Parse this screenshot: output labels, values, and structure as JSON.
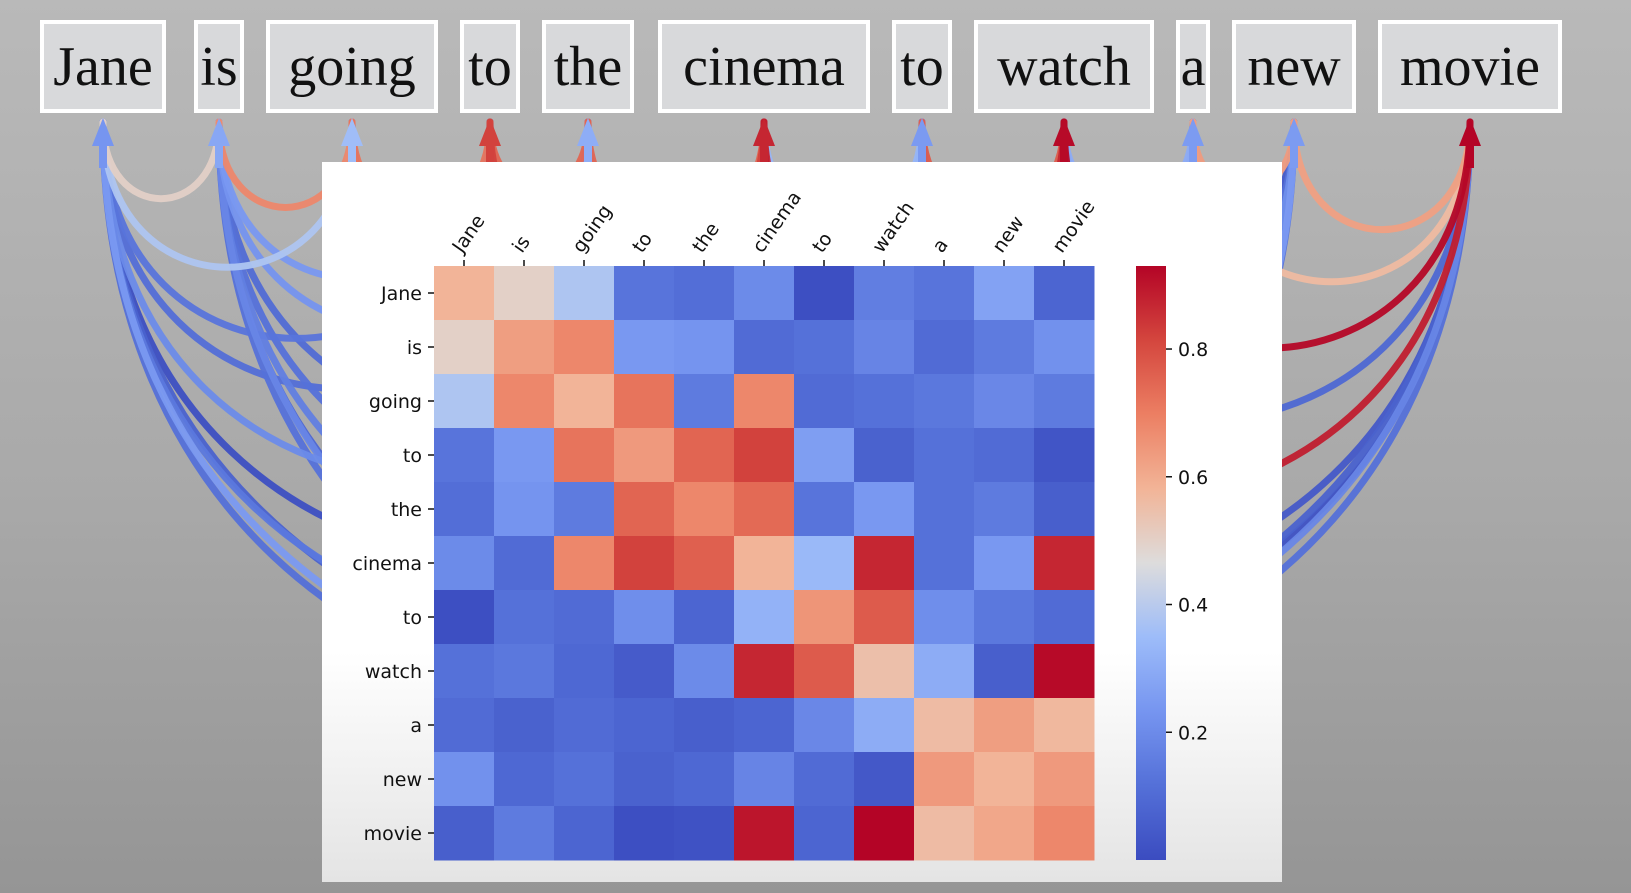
{
  "tokens": [
    "Jane",
    "is",
    "going",
    "to",
    "the",
    "cinema",
    "to",
    "watch",
    "a",
    "new",
    "movie"
  ],
  "colors": {
    "background": "#b0b0b0",
    "token_box": "#d8d9db",
    "token_border": "#ffffff",
    "colormap": "coolwarm",
    "low": "#3b4cc0",
    "mid": "#dddcdc",
    "high": "#b40426"
  },
  "chart_data": {
    "type": "heatmap",
    "x_labels": [
      "Jane",
      "is",
      "going",
      "to",
      "the",
      "cinema",
      "to",
      "watch",
      "a",
      "new",
      "movie"
    ],
    "y_labels": [
      "Jane",
      "is",
      "going",
      "to",
      "the",
      "cinema",
      "to",
      "watch",
      "a",
      "new",
      "movie"
    ],
    "values": [
      [
        0.58,
        0.5,
        0.38,
        0.13,
        0.11,
        0.2,
        0.01,
        0.16,
        0.13,
        0.27,
        0.08
      ],
      [
        0.5,
        0.63,
        0.68,
        0.24,
        0.23,
        0.1,
        0.12,
        0.18,
        0.1,
        0.15,
        0.22
      ],
      [
        0.38,
        0.68,
        0.58,
        0.72,
        0.15,
        0.68,
        0.1,
        0.12,
        0.14,
        0.19,
        0.15
      ],
      [
        0.13,
        0.24,
        0.72,
        0.64,
        0.75,
        0.82,
        0.26,
        0.07,
        0.12,
        0.1,
        0.03
      ],
      [
        0.11,
        0.23,
        0.15,
        0.75,
        0.68,
        0.74,
        0.13,
        0.24,
        0.12,
        0.15,
        0.06
      ],
      [
        0.2,
        0.1,
        0.68,
        0.82,
        0.76,
        0.58,
        0.34,
        0.87,
        0.12,
        0.24,
        0.87
      ],
      [
        0.01,
        0.12,
        0.1,
        0.21,
        0.08,
        0.32,
        0.65,
        0.77,
        0.21,
        0.14,
        0.1
      ],
      [
        0.12,
        0.14,
        0.09,
        0.05,
        0.2,
        0.87,
        0.77,
        0.55,
        0.3,
        0.06,
        0.92
      ],
      [
        0.1,
        0.07,
        0.1,
        0.08,
        0.06,
        0.08,
        0.19,
        0.3,
        0.56,
        0.63,
        0.57
      ],
      [
        0.22,
        0.09,
        0.12,
        0.07,
        0.09,
        0.18,
        0.1,
        0.04,
        0.64,
        0.58,
        0.64
      ],
      [
        0.06,
        0.15,
        0.08,
        0.01,
        0.02,
        0.9,
        0.08,
        0.93,
        0.56,
        0.61,
        0.68
      ]
    ],
    "vmin": 0.0,
    "vmax": 0.93,
    "colorbar_ticks": [
      0.2,
      0.4,
      0.6,
      0.8
    ],
    "colorbar_tick_labels": [
      "0.2",
      "0.4",
      "0.6",
      "0.8"
    ],
    "title": "",
    "xlabel": "",
    "ylabel": ""
  }
}
